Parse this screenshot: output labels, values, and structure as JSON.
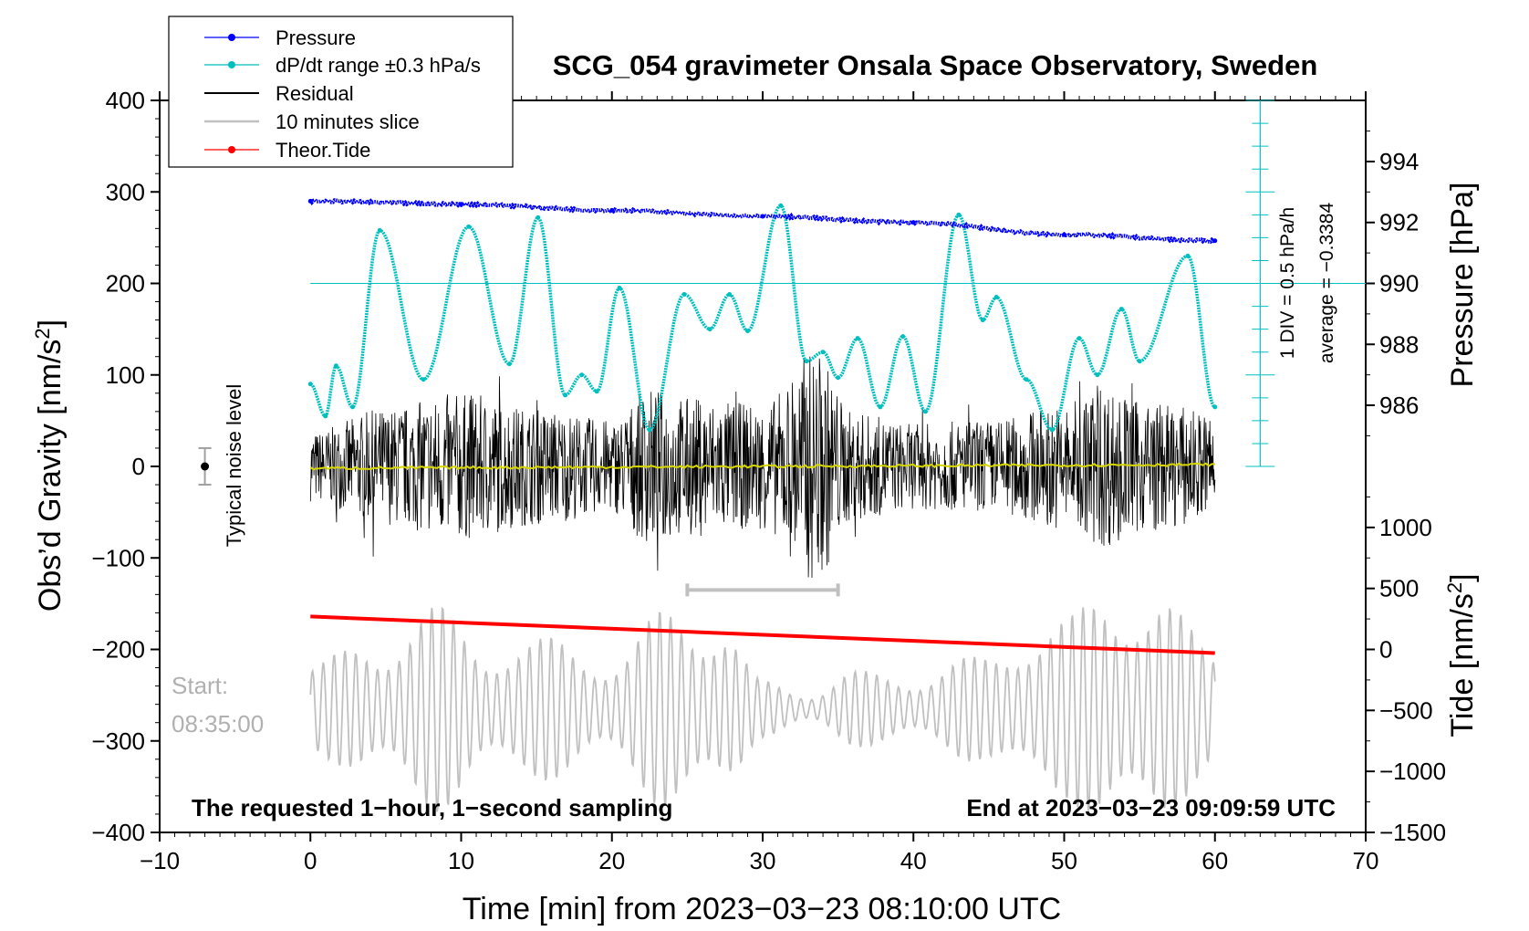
{
  "chart_data": {
    "type": "line",
    "title": "SCG_054 gravimeter Onsala Space Observatory, Sweden",
    "xlabel": "Time [min] from 2023−03−23 08:10:00 UTC",
    "xlim": [
      -10,
      70
    ],
    "x_ticks": [
      "−10",
      "0",
      "10",
      "20",
      "30",
      "40",
      "50",
      "60",
      "70"
    ],
    "x_tick_values": [
      -10,
      0,
      10,
      20,
      30,
      40,
      50,
      60,
      70
    ],
    "left_axis": {
      "label": "Obs’d Gravity [nm/s",
      "label_sup": "2",
      "label_end": "]",
      "ylim": [
        -400,
        400
      ],
      "ticks": [
        "400",
        "300",
        "200",
        "100",
        "0",
        "−100",
        "−200",
        "−300",
        "−400"
      ],
      "tick_values": [
        400,
        300,
        200,
        100,
        0,
        -100,
        -200,
        -300,
        -400
      ]
    },
    "pressure_axis": {
      "label": "Pressure [hPa]",
      "ticks": [
        "994",
        "992",
        "990",
        "988",
        "986"
      ],
      "tick_values": [
        994,
        992,
        990,
        988,
        986
      ],
      "gravity_at_990": 200,
      "gravity_per_hpa": 33.3
    },
    "tide_axis": {
      "label": "Tide [nm/s",
      "label_sup": "2",
      "label_end": "]",
      "ticks": [
        "1000",
        "500",
        "0",
        "−500",
        "−1000",
        "−1500"
      ],
      "tick_values": [
        1000,
        500,
        0,
        -500,
        -1000,
        -1500
      ],
      "gravity_at_0": -200,
      "gravity_per_unit": 0.1333
    },
    "series": [
      {
        "name": "Pressure",
        "color": "#0000ff",
        "unit": "hPa",
        "x": [
          0,
          10,
          20,
          30,
          40,
          50,
          60
        ],
        "values": [
          992.7,
          992.6,
          992.4,
          992.2,
          992.0,
          991.6,
          991.4
        ]
      },
      {
        "name": "dP/dt range ±0.3 hPa/s",
        "color": "#00bfbf",
        "unit": "nm/s2 (plot)",
        "x": [
          0,
          1,
          1.7,
          2.8,
          4.6,
          7.5,
          10.5,
          13.2,
          15.1,
          16.9,
          18,
          19,
          20.5,
          22.5,
          24.8,
          26.5,
          27.8,
          29,
          31.2,
          32.9,
          34,
          35,
          36.3,
          37.8,
          39.3,
          40.8,
          43,
          44.6,
          45.5,
          47.5,
          49.2,
          51,
          52.2,
          53.8,
          55,
          58.2,
          60
        ],
        "values": [
          90,
          55,
          110,
          65,
          258,
          95,
          262,
          112,
          272,
          78,
          100,
          82,
          195,
          40,
          188,
          150,
          188,
          148,
          285,
          115,
          125,
          97,
          140,
          65,
          142,
          60,
          275,
          160,
          185,
          95,
          40,
          140,
          100,
          172,
          115,
          230,
          65
        ]
      },
      {
        "name": "Residual",
        "color": "#000000",
        "unit": "nm/s2",
        "envelope_x": [
          0,
          5,
          10,
          15,
          20,
          22.5,
          25,
          30,
          33.5,
          36,
          40,
          45,
          50,
          52.5,
          55,
          60
        ],
        "envelope_amplitude": [
          45,
          75,
          95,
          75,
          60,
          100,
          90,
          80,
          150,
          70,
          55,
          60,
          80,
          105,
          85,
          70
        ]
      },
      {
        "name": "10 minutes slice",
        "color": "#c0c0c0",
        "unit": "nm/s2",
        "baseline": -265,
        "envelope_x": [
          0,
          4,
          8,
          12,
          16,
          20,
          24,
          27,
          30,
          33,
          36,
          40,
          44,
          48,
          50,
          53,
          56,
          60
        ],
        "envelope_amplitude": [
          50,
          70,
          110,
          70,
          75,
          55,
          110,
          100,
          30,
          18,
          40,
          35,
          55,
          85,
          95,
          135,
          115,
          75
        ]
      },
      {
        "name": "Theor.Tide",
        "color": "#ff0000",
        "unit": "nm/s2 (tide scale)",
        "x": [
          0,
          60
        ],
        "values": [
          270,
          -30
        ]
      }
    ],
    "yellow_trend": {
      "color": "#d8d800",
      "x": [
        0,
        60
      ],
      "values": [
        -2,
        2
      ]
    },
    "noise_level": {
      "label": "Typical noise level",
      "x": -7,
      "y": 0,
      "error": 20
    },
    "slice_bar": {
      "x_start": 25,
      "x_end": 35,
      "y": -135
    },
    "dpdt_scale": {
      "x": 63,
      "label_div": "1 DIV = 0.5 hPa/h",
      "label_avg": "average = −0.3384",
      "reference_value": 200
    },
    "annotations": {
      "start_label": "Start:",
      "start_time": "08:35:00",
      "bottom_left": "The requested 1−hour, 1−second sampling",
      "bottom_right": "End at 2023−03−23 09:09:59 UTC"
    },
    "legend": [
      {
        "name": "Pressure",
        "color": "#0000ff",
        "marker": true
      },
      {
        "name": "dP/dt range ±0.3 hPa/s",
        "color": "#00bfbf",
        "marker": true
      },
      {
        "name": "Residual",
        "color": "#000000",
        "marker": false
      },
      {
        "name": "10 minutes slice",
        "color": "#c0c0c0",
        "marker": false
      },
      {
        "name": "Theor.Tide",
        "color": "#ff0000",
        "marker": true
      }
    ],
    "legend_position": "top-left"
  }
}
